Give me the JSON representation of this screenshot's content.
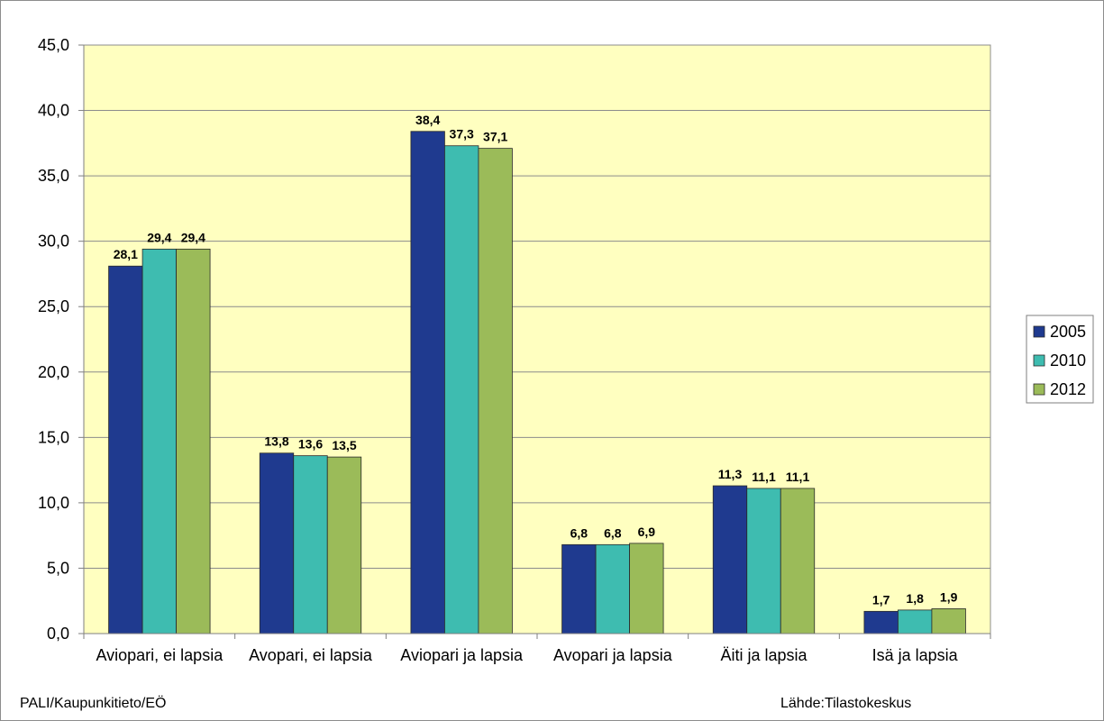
{
  "chart_data": {
    "type": "bar",
    "categories": [
      "Aviopari, ei lapsia",
      "Avopari, ei lapsia",
      "Aviopari ja lapsia",
      "Avopari ja lapsia",
      "Äiti ja lapsia",
      "Isä ja lapsia"
    ],
    "series": [
      {
        "name": "2005",
        "color": "#1f3a8f",
        "values": [
          28.1,
          13.8,
          38.4,
          6.8,
          11.3,
          1.7
        ],
        "labels": [
          "28,1",
          "13,8",
          "38,4",
          "6,8",
          "11,3",
          "1,7"
        ]
      },
      {
        "name": "2010",
        "color": "#3ebcb0",
        "values": [
          29.4,
          13.6,
          37.3,
          6.8,
          11.1,
          1.8
        ],
        "labels": [
          "29,4",
          "13,6",
          "37,3",
          "6,8",
          "11,1",
          "1,8"
        ]
      },
      {
        "name": "2012",
        "color": "#9bbb59",
        "values": [
          29.4,
          13.5,
          37.1,
          6.9,
          11.1,
          1.9
        ],
        "labels": [
          "29,4",
          "13,5",
          "37,1",
          "6,9",
          "11,1",
          "1,9"
        ]
      }
    ],
    "ylim": [
      0,
      45
    ],
    "yticks": [
      0,
      5,
      10,
      15,
      20,
      25,
      30,
      35,
      40,
      45
    ],
    "ytick_labels": [
      "0,0",
      "5,0",
      "10,0",
      "15,0",
      "20,0",
      "25,0",
      "30,0",
      "35,0",
      "40,0",
      "45,0"
    ],
    "grid": true,
    "legend_position": "right",
    "plot_background": "#ffffc0"
  },
  "footer": {
    "left": "PALI/Kaupunkitieto/EÖ",
    "right": "Lähde:Tilastokeskus"
  }
}
